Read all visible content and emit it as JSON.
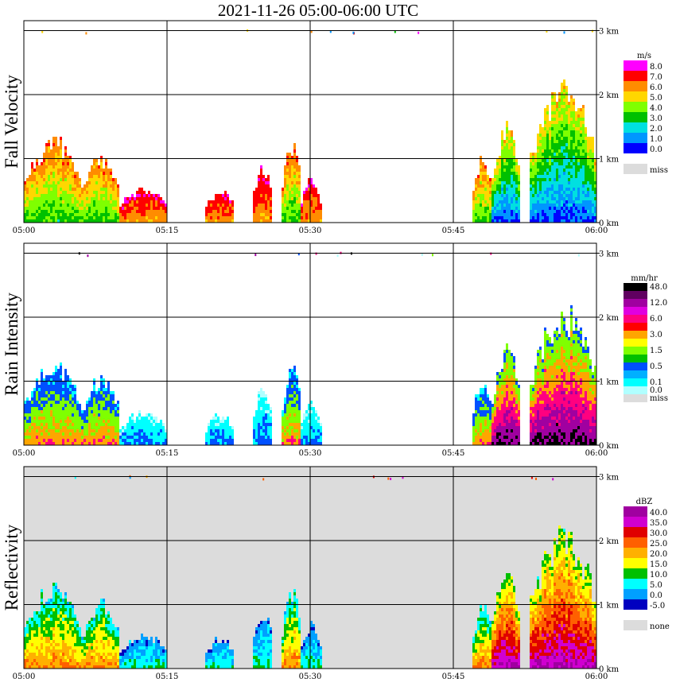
{
  "title": "2021-11-26   05:00-06:00 UTC",
  "chart_data": {
    "type": "heatmap",
    "title": "2021-11-26   05:00-06:00 UTC",
    "x_ticks": [
      "05:00",
      "05:15",
      "05:30",
      "05:45",
      "06:00"
    ],
    "y_ticks": [
      "0 km",
      "1 km",
      "2 km",
      "3 km"
    ],
    "y_range_km": [
      0,
      3.2
    ],
    "x_range": [
      "05:00",
      "06:00"
    ],
    "grid": true,
    "panels": [
      {
        "name": "Fall Velocity",
        "background": "#ffffff",
        "legend": {
          "unit": "m/s",
          "levels": [
            {
              "label": "8.0",
              "color": "#ff00ff"
            },
            {
              "label": "7.0",
              "color": "#ff0000"
            },
            {
              "label": "6.0",
              "color": "#ff8c00"
            },
            {
              "label": "5.0",
              "color": "#ffd700"
            },
            {
              "label": "4.0",
              "color": "#7fff00"
            },
            {
              "label": "3.0",
              "color": "#00c000"
            },
            {
              "label": "2.0",
              "color": "#00e0e0"
            },
            {
              "label": "1.0",
              "color": "#0096ff"
            },
            {
              "label": "0.0",
              "color": "#0000ff"
            },
            {
              "label": "",
              "color": "#ffffff"
            },
            {
              "label": "miss",
              "color": "#dcdcdc"
            }
          ]
        }
      },
      {
        "name": "Rain Intensity",
        "background": "#ffffff",
        "legend": {
          "unit": "mm/hr",
          "levels": [
            {
              "label": "48.0",
              "color": "#000000"
            },
            {
              "label": "",
              "color": "#600060"
            },
            {
              "label": "12.0",
              "color": "#a000a0"
            },
            {
              "label": "",
              "color": "#e000e0"
            },
            {
              "label": "6.0",
              "color": "#ff0080"
            },
            {
              "label": "",
              "color": "#ff0000"
            },
            {
              "label": "3.0",
              "color": "#ffa500"
            },
            {
              "label": "",
              "color": "#ffff00"
            },
            {
              "label": "1.5",
              "color": "#7fff00"
            },
            {
              "label": "",
              "color": "#00c000"
            },
            {
              "label": "0.5",
              "color": "#0050ff"
            },
            {
              "label": "",
              "color": "#00b0ff"
            },
            {
              "label": "0.1",
              "color": "#00ffff"
            },
            {
              "label": "0.0",
              "color": "#b0ffff"
            },
            {
              "label": "miss",
              "color": "#dcdcdc"
            }
          ]
        }
      },
      {
        "name": "Reflectivity",
        "background": "#dcdcdc",
        "legend": {
          "unit": "dBZ",
          "levels": [
            {
              "label": "40.0",
              "color": "#a000a0"
            },
            {
              "label": "35.0",
              "color": "#d000d0"
            },
            {
              "label": "30.0",
              "color": "#e00000"
            },
            {
              "label": "25.0",
              "color": "#ff6000"
            },
            {
              "label": "20.0",
              "color": "#ffb000"
            },
            {
              "label": "15.0",
              "color": "#ffff00"
            },
            {
              "label": "10.0",
              "color": "#00c000"
            },
            {
              "label": "5.0",
              "color": "#00ffff"
            },
            {
              "label": "0.0",
              "color": "#00a0ff"
            },
            {
              "label": "-5.0",
              "color": "#0000c0"
            },
            {
              "label": "",
              "color": "#ffffff"
            },
            {
              "label": "none",
              "color": "#dcdcdc"
            }
          ]
        }
      }
    ],
    "echo_cells": [
      {
        "start": "05:00",
        "end": "05:06",
        "top_km": 1.35,
        "intensity": "moderate"
      },
      {
        "start": "05:06",
        "end": "05:10",
        "top_km": 1.1,
        "intensity": "moderate"
      },
      {
        "start": "05:10",
        "end": "05:15",
        "top_km": 0.55,
        "intensity": "light"
      },
      {
        "start": "05:19",
        "end": "05:22",
        "top_km": 0.5,
        "intensity": "light"
      },
      {
        "start": "05:24",
        "end": "05:26",
        "top_km": 0.95,
        "intensity": "light"
      },
      {
        "start": "05:27",
        "end": "05:29",
        "top_km": 1.3,
        "intensity": "moderate"
      },
      {
        "start": "05:29",
        "end": "05:31",
        "top_km": 0.7,
        "intensity": "light"
      },
      {
        "start": "05:47",
        "end": "05:49",
        "top_km": 1.1,
        "intensity": "moderate"
      },
      {
        "start": "05:49",
        "end": "05:52",
        "top_km": 1.6,
        "intensity": "heavy"
      },
      {
        "start": "05:53",
        "end": "06:00",
        "top_km": 2.25,
        "intensity": "heavy"
      }
    ]
  }
}
